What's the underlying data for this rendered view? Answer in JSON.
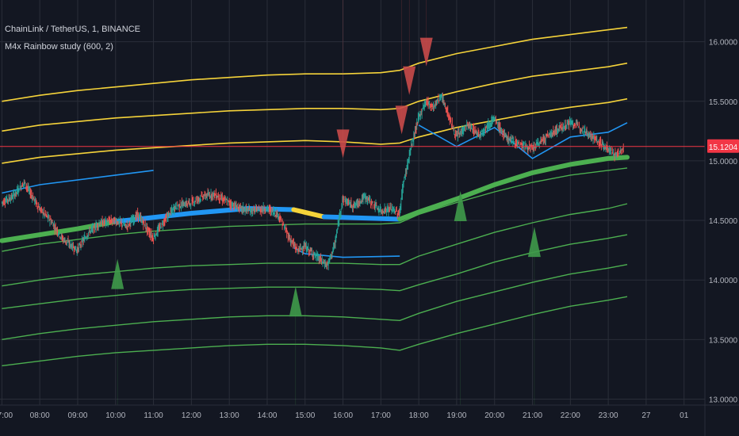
{
  "header": {
    "symbol": "ChainLink / TetherUS, 1, BINANCE",
    "study": "M4x Rainbow study (600, 2)"
  },
  "colors": {
    "background": "#131722",
    "grid": "#2a2e39",
    "yellow_band": "#f5d33a",
    "green_band": "#4caf50",
    "blue_segment": "#2196f3",
    "price_line": "#f23645",
    "sell_marker": "#c94a4a",
    "buy_marker": "#3f9a4a",
    "up_candle": "#26a69a",
    "down_candle": "#ef5350"
  },
  "chart_data": {
    "type": "line",
    "y_ticks": [
      "16.0000",
      "15.5000",
      "15.0000",
      "14.5000",
      "14.0000",
      "13.5000",
      "13.0000"
    ],
    "x_ticks": [
      "7:00",
      "08:00",
      "09:00",
      "10:00",
      "11:00",
      "12:00",
      "13:00",
      "14:00",
      "15:00",
      "16:00",
      "17:00",
      "18:00",
      "19:00",
      "20:00",
      "21:00",
      "22:00",
      "23:00",
      "27",
      "01"
    ],
    "ylim": [
      12.95,
      16.35
    ],
    "last_price": "15.1204",
    "last_price_value": 15.1204,
    "x_hours": [
      7,
      8,
      9,
      10,
      11,
      12,
      13,
      14,
      15,
      16,
      17,
      17.5,
      18,
      19,
      20,
      21,
      22,
      23,
      23.5
    ],
    "upper_bands": [
      {
        "name": "yellow-band-3",
        "values": [
          15.5,
          15.55,
          15.59,
          15.62,
          15.65,
          15.68,
          15.7,
          15.72,
          15.73,
          15.73,
          15.74,
          15.76,
          15.82,
          15.9,
          15.96,
          16.02,
          16.06,
          16.1,
          16.12
        ]
      },
      {
        "name": "yellow-band-2",
        "values": [
          15.25,
          15.3,
          15.33,
          15.36,
          15.38,
          15.4,
          15.42,
          15.43,
          15.44,
          15.44,
          15.43,
          15.44,
          15.5,
          15.58,
          15.65,
          15.71,
          15.75,
          15.79,
          15.82
        ]
      },
      {
        "name": "yellow-band-1",
        "values": [
          14.98,
          15.03,
          15.06,
          15.09,
          15.11,
          15.13,
          15.15,
          15.16,
          15.17,
          15.16,
          15.14,
          15.15,
          15.2,
          15.28,
          15.34,
          15.4,
          15.45,
          15.49,
          15.52
        ]
      }
    ],
    "lower_bands": [
      {
        "name": "green-band-1",
        "values": [
          14.24,
          14.3,
          14.34,
          14.38,
          14.41,
          14.43,
          14.45,
          14.46,
          14.47,
          14.47,
          14.47,
          14.48,
          14.55,
          14.65,
          14.74,
          14.82,
          14.88,
          14.92,
          14.94
        ]
      },
      {
        "name": "green-band-2",
        "values": [
          13.95,
          14.0,
          14.04,
          14.07,
          14.1,
          14.12,
          14.13,
          14.14,
          14.14,
          14.14,
          14.13,
          14.13,
          14.2,
          14.3,
          14.4,
          14.48,
          14.55,
          14.6,
          14.64
        ]
      },
      {
        "name": "green-band-3",
        "values": [
          13.76,
          13.8,
          13.84,
          13.87,
          13.9,
          13.92,
          13.93,
          13.94,
          13.94,
          13.93,
          13.92,
          13.91,
          13.96,
          14.05,
          14.15,
          14.23,
          14.3,
          14.35,
          14.38
        ]
      },
      {
        "name": "green-band-4",
        "values": [
          13.5,
          13.55,
          13.59,
          13.62,
          13.65,
          13.67,
          13.69,
          13.7,
          13.7,
          13.69,
          13.67,
          13.66,
          13.72,
          13.82,
          13.9,
          13.98,
          14.05,
          14.1,
          14.13
        ]
      },
      {
        "name": "green-band-5",
        "values": [
          13.28,
          13.32,
          13.36,
          13.39,
          13.41,
          13.43,
          13.45,
          13.46,
          13.46,
          13.45,
          13.43,
          13.41,
          13.46,
          13.55,
          13.63,
          13.71,
          13.78,
          13.83,
          13.86
        ]
      }
    ],
    "middle_band": {
      "x": [
        7,
        9,
        10,
        12,
        13.5,
        14.7,
        15.5,
        17.5,
        18,
        19,
        20,
        21,
        22,
        23,
        23.5
      ],
      "values": [
        14.33,
        14.43,
        14.49,
        14.56,
        14.6,
        14.59,
        14.53,
        14.51,
        14.57,
        14.68,
        14.8,
        14.9,
        14.97,
        15.02,
        15.03
      ],
      "segments": [
        {
          "from": 7,
          "to": 10,
          "color": "green"
        },
        {
          "from": 10,
          "to": 14.7,
          "color": "blue"
        },
        {
          "from": 14.7,
          "to": 15.5,
          "color": "yellow"
        },
        {
          "from": 15.5,
          "to": 17.5,
          "color": "blue"
        },
        {
          "from": 17.5,
          "to": 23.5,
          "color": "green"
        }
      ]
    },
    "blue_upper_line": {
      "x": [
        7,
        8,
        10,
        11
      ],
      "values": [
        14.73,
        14.8,
        14.88,
        14.92
      ]
    },
    "blue_lower_line": {
      "x": [
        14.7,
        15,
        16,
        17.5
      ],
      "values": [
        14.27,
        14.22,
        14.19,
        14.2
      ]
    },
    "blue_right_line": {
      "x": [
        18,
        19,
        20,
        21,
        22,
        23,
        23.5
      ],
      "values": [
        15.3,
        15.12,
        15.28,
        15.02,
        15.2,
        15.24,
        15.32
      ]
    },
    "price": {
      "x": [
        7,
        7.3,
        7.6,
        8.0,
        8.3,
        8.6,
        9.0,
        9.3,
        9.6,
        10.0,
        10.3,
        10.6,
        11.0,
        11.3,
        11.6,
        12.0,
        12.3,
        12.6,
        13.0,
        13.3,
        13.6,
        14.0,
        14.3,
        14.6,
        14.8,
        15.0,
        15.3,
        15.6,
        15.8,
        16.0,
        16.3,
        16.6,
        17.0,
        17.3,
        17.5,
        17.6,
        17.8,
        18.0,
        18.2,
        18.4,
        18.6,
        18.8,
        19.0,
        19.3,
        19.6,
        20.0,
        20.3,
        20.6,
        21.0,
        21.3,
        21.6,
        22.0,
        22.3,
        22.6,
        23.0,
        23.2,
        23.4
      ],
      "values": [
        14.65,
        14.7,
        14.82,
        14.6,
        14.5,
        14.35,
        14.25,
        14.4,
        14.48,
        14.5,
        14.45,
        14.55,
        14.35,
        14.5,
        14.62,
        14.65,
        14.7,
        14.72,
        14.65,
        14.6,
        14.58,
        14.6,
        14.55,
        14.35,
        14.25,
        14.28,
        14.2,
        14.12,
        14.3,
        14.68,
        14.62,
        14.7,
        14.58,
        14.6,
        14.55,
        14.8,
        15.1,
        15.35,
        15.5,
        15.45,
        15.55,
        15.38,
        15.2,
        15.3,
        15.22,
        15.35,
        15.2,
        15.15,
        15.1,
        15.18,
        15.25,
        15.32,
        15.28,
        15.2,
        15.1,
        15.05,
        15.1
      ]
    },
    "sell_markers": [
      {
        "x": 16.0,
        "y": 15.05
      },
      {
        "x": 17.55,
        "y": 15.25
      },
      {
        "x": 17.75,
        "y": 15.58
      },
      {
        "x": 18.2,
        "y": 15.82
      }
    ],
    "buy_markers": [
      {
        "x": 10.05,
        "y": 14.15
      },
      {
        "x": 14.75,
        "y": 13.92
      },
      {
        "x": 19.1,
        "y": 14.72
      },
      {
        "x": 21.05,
        "y": 14.42
      }
    ]
  }
}
